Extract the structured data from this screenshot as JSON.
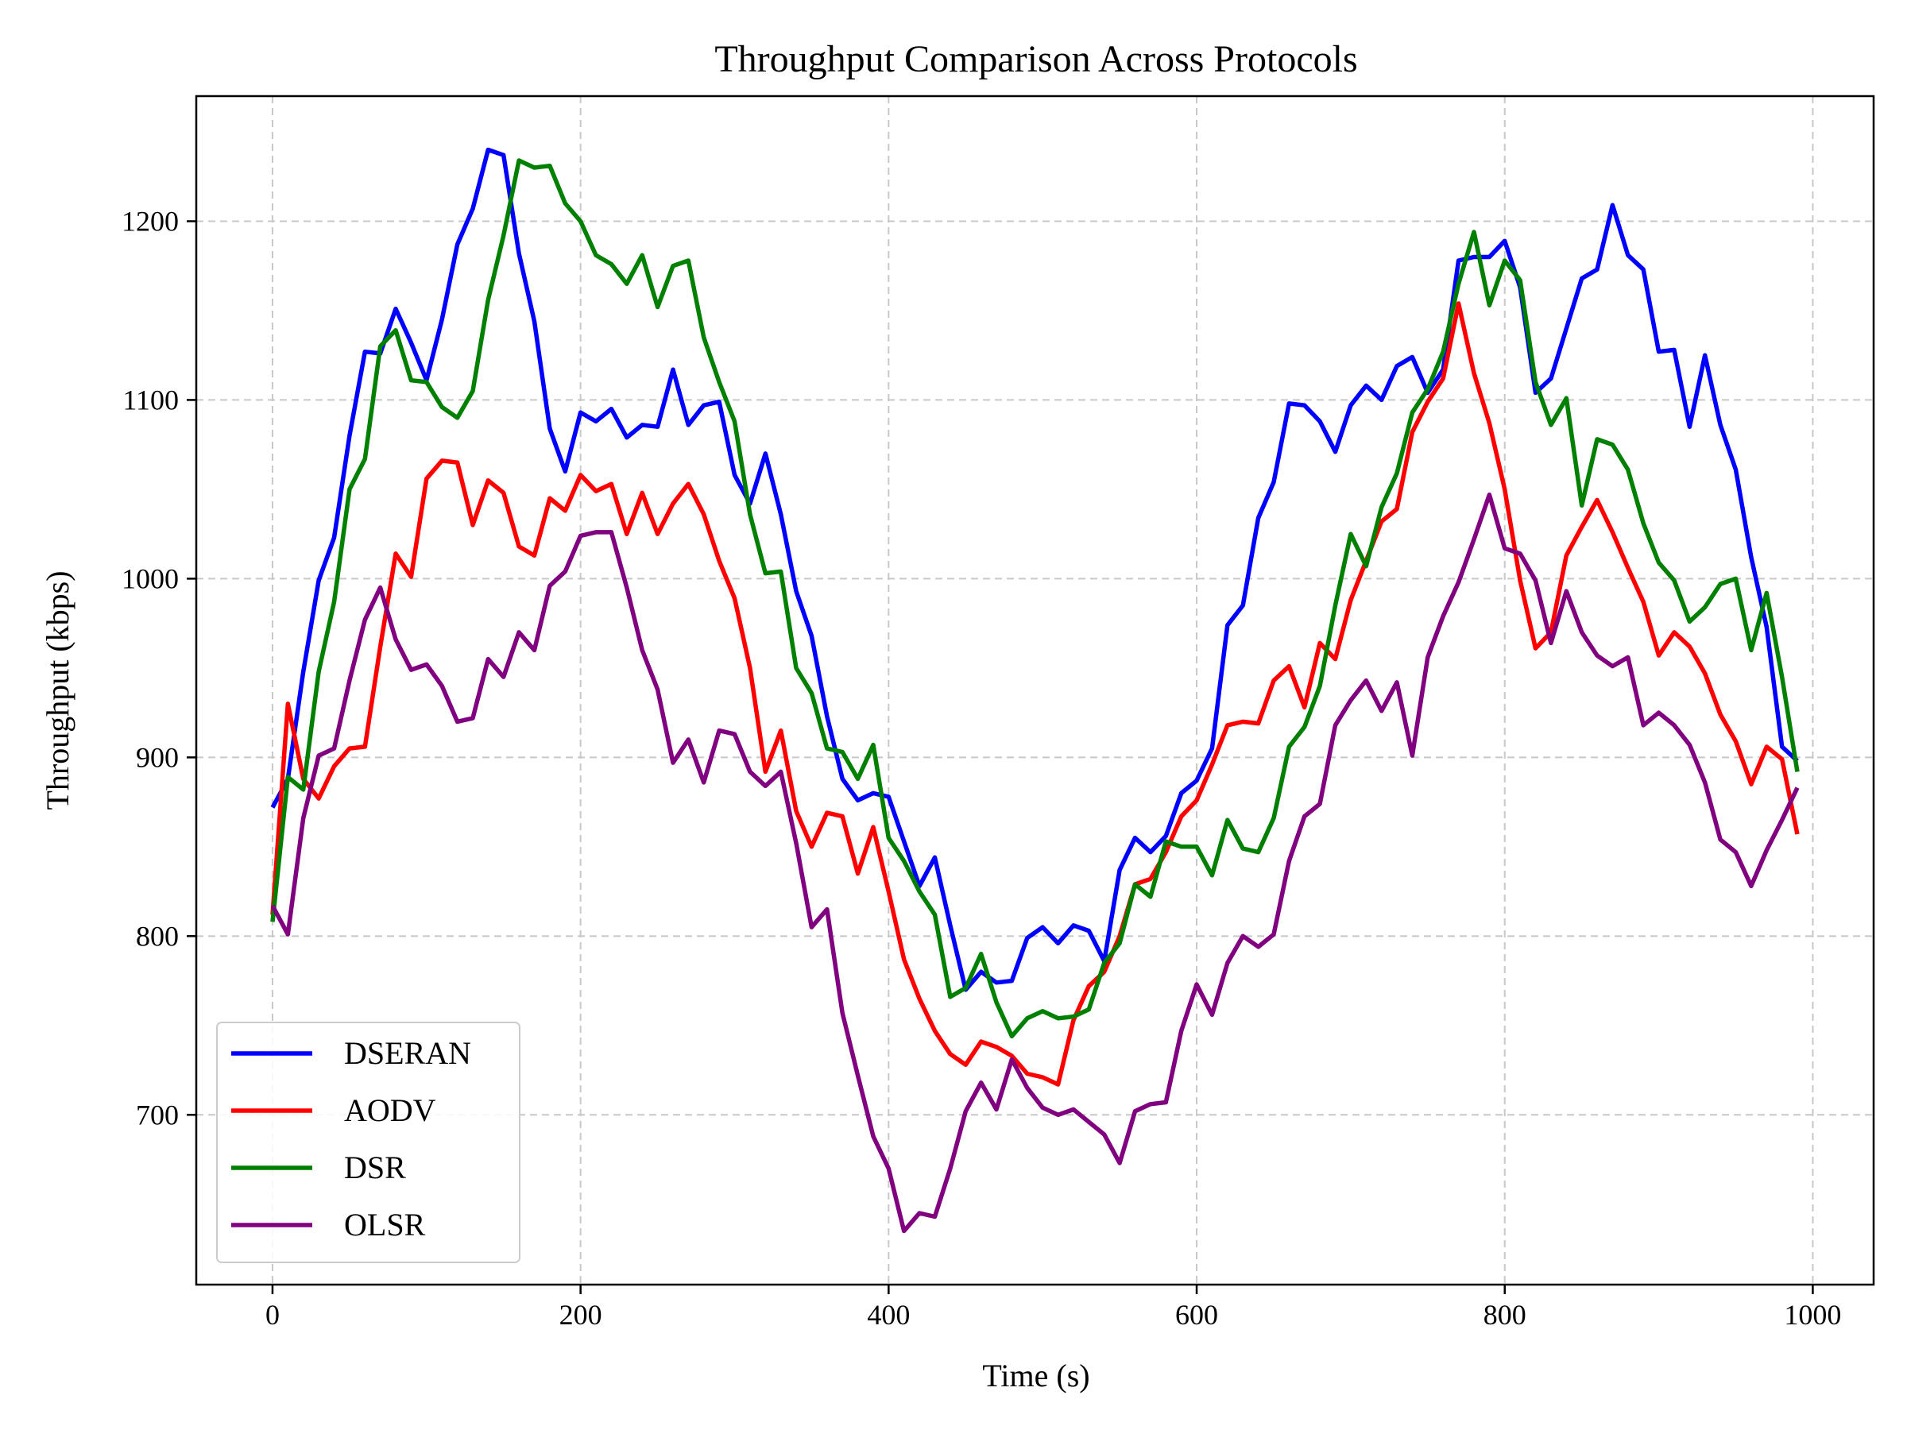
{
  "chart_data": {
    "type": "line",
    "title": "Throughput Comparison Across Protocols",
    "xlabel": "Time (s)",
    "ylabel": "Throughput (kbps)",
    "xlim": [
      -49.5,
      1039.5
    ],
    "ylim": [
      605,
      1270
    ],
    "xticks": [
      0,
      200,
      400,
      600,
      800,
      1000
    ],
    "yticks": [
      700,
      800,
      900,
      1000,
      1100,
      1200
    ],
    "grid": true,
    "legend_position": "lower-left",
    "x": [
      0,
      10,
      20,
      30,
      40,
      50,
      60,
      70,
      80,
      90,
      100,
      110,
      120,
      130,
      140,
      150,
      160,
      170,
      180,
      190,
      200,
      210,
      220,
      230,
      240,
      250,
      260,
      270,
      280,
      290,
      300,
      310,
      320,
      330,
      340,
      350,
      360,
      370,
      380,
      390,
      400,
      410,
      420,
      430,
      440,
      450,
      460,
      470,
      480,
      490,
      500,
      510,
      520,
      530,
      540,
      550,
      560,
      570,
      580,
      590,
      600,
      610,
      620,
      630,
      640,
      650,
      660,
      670,
      680,
      690,
      700,
      710,
      720,
      730,
      740,
      750,
      760,
      770,
      780,
      790,
      800,
      810,
      820,
      830,
      840,
      850,
      860,
      870,
      880,
      890,
      900,
      910,
      920,
      930,
      940,
      950,
      960,
      970,
      980,
      990
    ],
    "series": [
      {
        "name": "DSERAN",
        "color": "#0000ff",
        "values": [
          872,
          888,
          948,
          999,
          1023,
          1080,
          1127,
          1126,
          1151,
          1132,
          1111,
          1145,
          1187,
          1207,
          1240,
          1237,
          1182,
          1144,
          1084,
          1060,
          1093,
          1088,
          1095,
          1079,
          1086,
          1085,
          1117,
          1086,
          1097,
          1099,
          1058,
          1042,
          1070,
          1036,
          993,
          968,
          923,
          888,
          876,
          880,
          878,
          853,
          828,
          844,
          806,
          770,
          780,
          774,
          775,
          799,
          805,
          796,
          806,
          803,
          786,
          837,
          855,
          847,
          856,
          880,
          887,
          905,
          974,
          985,
          1034,
          1054,
          1098,
          1097,
          1088,
          1071,
          1097,
          1108,
          1100,
          1119,
          1124,
          1104,
          1117,
          1178,
          1180,
          1180,
          1189,
          1163,
          1104,
          1112,
          1140,
          1168,
          1173,
          1209,
          1181,
          1173,
          1127,
          1128,
          1085,
          1125,
          1086,
          1061,
          1012,
          973,
          906,
          898
        ]
      },
      {
        "name": "AODV",
        "color": "#ff0000",
        "values": [
          812,
          930,
          888,
          877,
          895,
          905,
          906,
          962,
          1014,
          1001,
          1056,
          1066,
          1065,
          1030,
          1055,
          1048,
          1018,
          1013,
          1045,
          1038,
          1058,
          1049,
          1053,
          1025,
          1048,
          1025,
          1042,
          1053,
          1036,
          1010,
          989,
          950,
          892,
          915,
          870,
          850,
          869,
          867,
          835,
          861,
          825,
          787,
          765,
          747,
          734,
          728,
          741,
          738,
          733,
          723,
          721,
          717,
          753,
          772,
          780,
          800,
          829,
          832,
          847,
          867,
          876,
          896,
          918,
          920,
          919,
          943,
          951,
          928,
          964,
          955,
          988,
          1010,
          1032,
          1039,
          1082,
          1099,
          1112,
          1154,
          1115,
          1087,
          1050,
          999,
          961,
          970,
          1013,
          1029,
          1044,
          1026,
          1006,
          987,
          957,
          970,
          962,
          947,
          924,
          909,
          885,
          906,
          899,
          857
        ]
      },
      {
        "name": "DSR",
        "color": "#008000",
        "values": [
          808,
          889,
          882,
          948,
          987,
          1050,
          1067,
          1130,
          1139,
          1111,
          1110,
          1096,
          1090,
          1105,
          1156,
          1192,
          1234,
          1230,
          1231,
          1210,
          1200,
          1181,
          1176,
          1165,
          1181,
          1152,
          1175,
          1178,
          1135,
          1110,
          1088,
          1036,
          1003,
          1004,
          950,
          936,
          905,
          903,
          888,
          907,
          855,
          842,
          825,
          812,
          766,
          771,
          790,
          763,
          744,
          754,
          758,
          754,
          755,
          759,
          785,
          796,
          829,
          822,
          853,
          850,
          850,
          834,
          865,
          849,
          847,
          866,
          906,
          917,
          940,
          985,
          1025,
          1007,
          1040,
          1059,
          1093,
          1106,
          1127,
          1165,
          1194,
          1153,
          1178,
          1167,
          1110,
          1086,
          1101,
          1041,
          1078,
          1075,
          1061,
          1031,
          1009,
          999,
          976,
          984,
          997,
          1000,
          960,
          992,
          945,
          892
        ]
      },
      {
        "name": "OLSR",
        "color": "#800080",
        "values": [
          817,
          801,
          866,
          901,
          905,
          943,
          977,
          995,
          966,
          949,
          952,
          940,
          920,
          922,
          955,
          945,
          970,
          960,
          996,
          1004,
          1024,
          1026,
          1026,
          995,
          960,
          938,
          897,
          910,
          886,
          915,
          913,
          892,
          884,
          892,
          852,
          805,
          815,
          757,
          722,
          688,
          670,
          635,
          645,
          643,
          670,
          702,
          718,
          703,
          731,
          715,
          704,
          700,
          703,
          696,
          689,
          673,
          702,
          706,
          707,
          747,
          773,
          756,
          785,
          800,
          794,
          801,
          842,
          867,
          874,
          918,
          932,
          943,
          926,
          942,
          901,
          956,
          979,
          998,
          1022,
          1047,
          1017,
          1014,
          999,
          964,
          993,
          970,
          957,
          951,
          956,
          918,
          925,
          918,
          907,
          886,
          854,
          847,
          828,
          848,
          865,
          883
        ]
      }
    ]
  }
}
